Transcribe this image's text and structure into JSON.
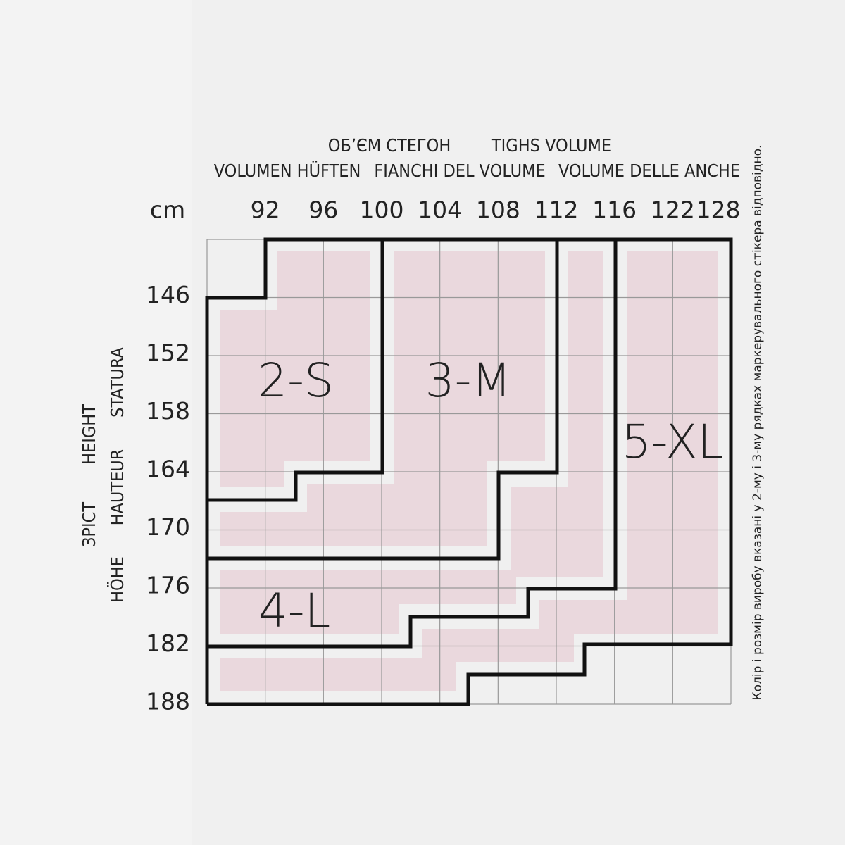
{
  "unit": "cm",
  "hips_labels": [
    "ОБʼЄМ СТЕГОН",
    "TIGHS VOLUME",
    "VOLUMEN HÜFTEN",
    "FIANCHI DEL VOLUME",
    "VOLUME DELLE ANCHE"
  ],
  "height_labels": [
    "STATURA",
    "HEIGHT",
    "HAUTEUR",
    "ЗРІСТ",
    "HÖHE"
  ],
  "columns": [
    92,
    96,
    100,
    104,
    108,
    112,
    116,
    122,
    128
  ],
  "rows": [
    146,
    152,
    158,
    164,
    170,
    176,
    182,
    188
  ],
  "sizes": [
    "2-S",
    "3-M",
    "4-L",
    "5-XL"
  ],
  "note": "Колір і розмір виробу вказані у 2-му і 3-му рядках маркерувального стікера відповідно."
}
